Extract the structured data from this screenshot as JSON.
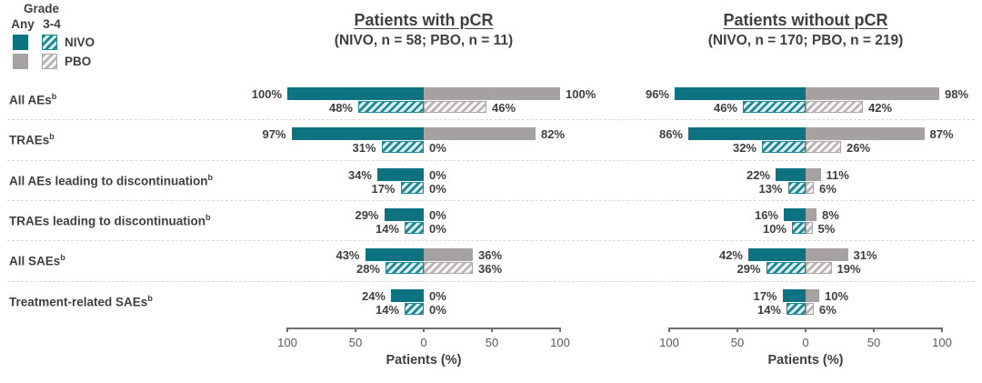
{
  "legend": {
    "grade_label": "Grade",
    "col_any": "Any",
    "col_grade34": "3-4",
    "series": [
      {
        "name": "NIVO"
      },
      {
        "name": "PBO"
      }
    ]
  },
  "axis": {
    "ticks": [
      "100",
      "50",
      "0",
      "50",
      "100"
    ],
    "label": "Patients (%)"
  },
  "colors": {
    "nivo_solid": "#0E7380",
    "nivo_stripe": "#1E8794",
    "nivo_hatch_bg": "#D9ECEE",
    "pbo_solid": "#A7A2A2",
    "pbo_stripe": "#B9B4B4",
    "pbo_hatch_bg": "#F6F4F4",
    "pbo_border": "#ABA6A6",
    "text": "#3F3E40"
  },
  "chart_data": {
    "type": "bar",
    "variant": "butterfly",
    "xlabel": "Patients (%)",
    "xlim": [
      -100,
      100
    ],
    "x_ticks": [
      100,
      50,
      0,
      50,
      100
    ],
    "categories": [
      {
        "label": "All AEs",
        "footnote": "b"
      },
      {
        "label": "TRAEs",
        "footnote": "b"
      },
      {
        "label": "All AEs leading to discontinuation",
        "footnote": "b"
      },
      {
        "label": "TRAEs leading to discontinuation",
        "footnote": "b"
      },
      {
        "label": "All SAEs",
        "footnote": "b"
      },
      {
        "label": "Treatment-related SAEs",
        "footnote": "b"
      }
    ],
    "panels": [
      {
        "title": "Patients with pCR",
        "subtitle": "(NIVO, n = 58; PBO, n = 11)",
        "series": [
          {
            "name": "NIVO Any",
            "values": [
              100,
              97,
              34,
              29,
              43,
              24
            ]
          },
          {
            "name": "NIVO Grade 3-4",
            "values": [
              48,
              31,
              17,
              14,
              28,
              14
            ]
          },
          {
            "name": "PBO Any",
            "values": [
              100,
              82,
              0,
              0,
              36,
              0
            ]
          },
          {
            "name": "PBO Grade 3-4",
            "values": [
              46,
              0,
              0,
              0,
              36,
              0
            ]
          }
        ]
      },
      {
        "title": "Patients without pCR",
        "subtitle": "(NIVO, n = 170; PBO, n = 219)",
        "series": [
          {
            "name": "NIVO Any",
            "values": [
              96,
              86,
              22,
              16,
              42,
              17
            ]
          },
          {
            "name": "NIVO Grade 3-4",
            "values": [
              46,
              32,
              13,
              10,
              29,
              14
            ]
          },
          {
            "name": "PBO Any",
            "values": [
              98,
              87,
              11,
              8,
              31,
              10
            ]
          },
          {
            "name": "PBO Grade 3-4",
            "values": [
              42,
              26,
              6,
              5,
              19,
              6
            ]
          }
        ]
      }
    ]
  }
}
